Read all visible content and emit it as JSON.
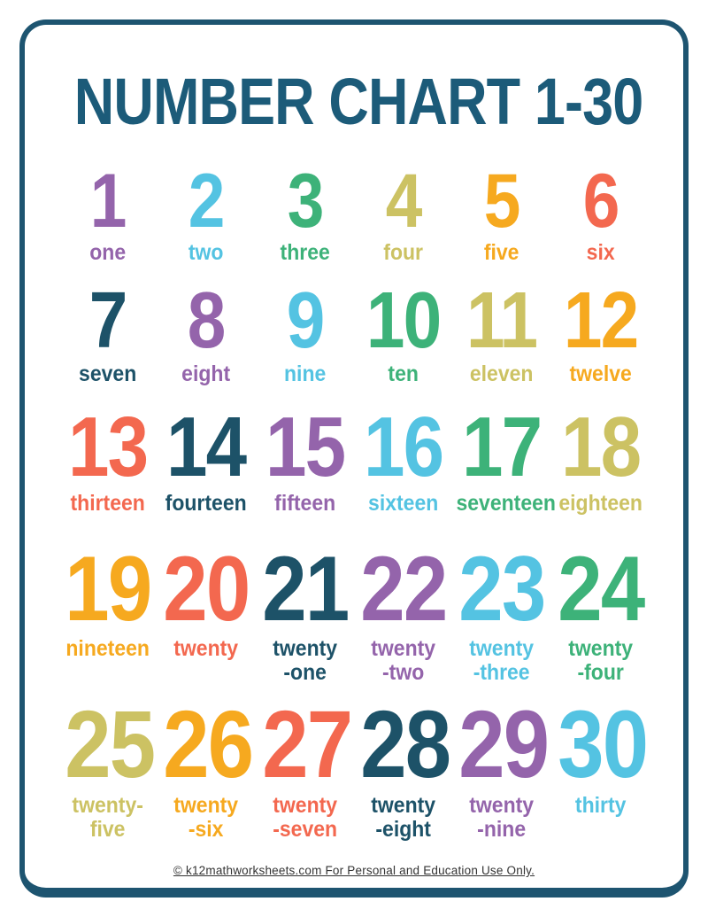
{
  "page": {
    "title": "NUMBER CHART 1-30",
    "title_color": "#1c5b79",
    "border_color": "#1d5470",
    "background": "#ffffff",
    "footer_text": "© k12mathworksheets.com For Personal and Education Use Only.",
    "footer_color": "#333333"
  },
  "palette": {
    "purple": "#9464ab",
    "cyan": "#54c3e2",
    "green": "#3db279",
    "olive": "#ccc263",
    "orange": "#f6a91f",
    "coral": "#f3684f",
    "teal": "#1d5268"
  },
  "numbers": [
    {
      "value": "1",
      "word": "one",
      "color": "purple"
    },
    {
      "value": "2",
      "word": "two",
      "color": "cyan"
    },
    {
      "value": "3",
      "word": "three",
      "color": "green"
    },
    {
      "value": "4",
      "word": "four",
      "color": "olive"
    },
    {
      "value": "5",
      "word": "five",
      "color": "orange"
    },
    {
      "value": "6",
      "word": "six",
      "color": "coral"
    },
    {
      "value": "7",
      "word": "seven",
      "color": "teal"
    },
    {
      "value": "8",
      "word": "eight",
      "color": "purple"
    },
    {
      "value": "9",
      "word": "nine",
      "color": "cyan"
    },
    {
      "value": "10",
      "word": "ten",
      "color": "green"
    },
    {
      "value": "11",
      "word": "eleven",
      "color": "olive"
    },
    {
      "value": "12",
      "word": "twelve",
      "color": "orange"
    },
    {
      "value": "13",
      "word": "thirteen",
      "color": "coral"
    },
    {
      "value": "14",
      "word": "fourteen",
      "color": "teal"
    },
    {
      "value": "15",
      "word": "fifteen",
      "color": "purple"
    },
    {
      "value": "16",
      "word": "sixteen",
      "color": "cyan"
    },
    {
      "value": "17",
      "word": "seventeen",
      "color": "green"
    },
    {
      "value": "18",
      "word": "eighteen",
      "color": "olive"
    },
    {
      "value": "19",
      "word": "nineteen",
      "color": "orange"
    },
    {
      "value": "20",
      "word": "twenty",
      "color": "coral"
    },
    {
      "value": "21",
      "word": "twenty\n-one",
      "color": "teal"
    },
    {
      "value": "22",
      "word": "twenty\n-two",
      "color": "purple"
    },
    {
      "value": "23",
      "word": "twenty\n-three",
      "color": "cyan"
    },
    {
      "value": "24",
      "word": "twenty\n-four",
      "color": "green"
    },
    {
      "value": "25",
      "word": "twenty-\nfive",
      "color": "olive"
    },
    {
      "value": "26",
      "word": "twenty\n-six",
      "color": "orange"
    },
    {
      "value": "27",
      "word": "twenty\n-seven",
      "color": "coral"
    },
    {
      "value": "28",
      "word": "twenty\n-eight",
      "color": "teal"
    },
    {
      "value": "29",
      "word": "twenty\n-nine",
      "color": "purple"
    },
    {
      "value": "30",
      "word": "thirty",
      "color": "cyan"
    }
  ]
}
